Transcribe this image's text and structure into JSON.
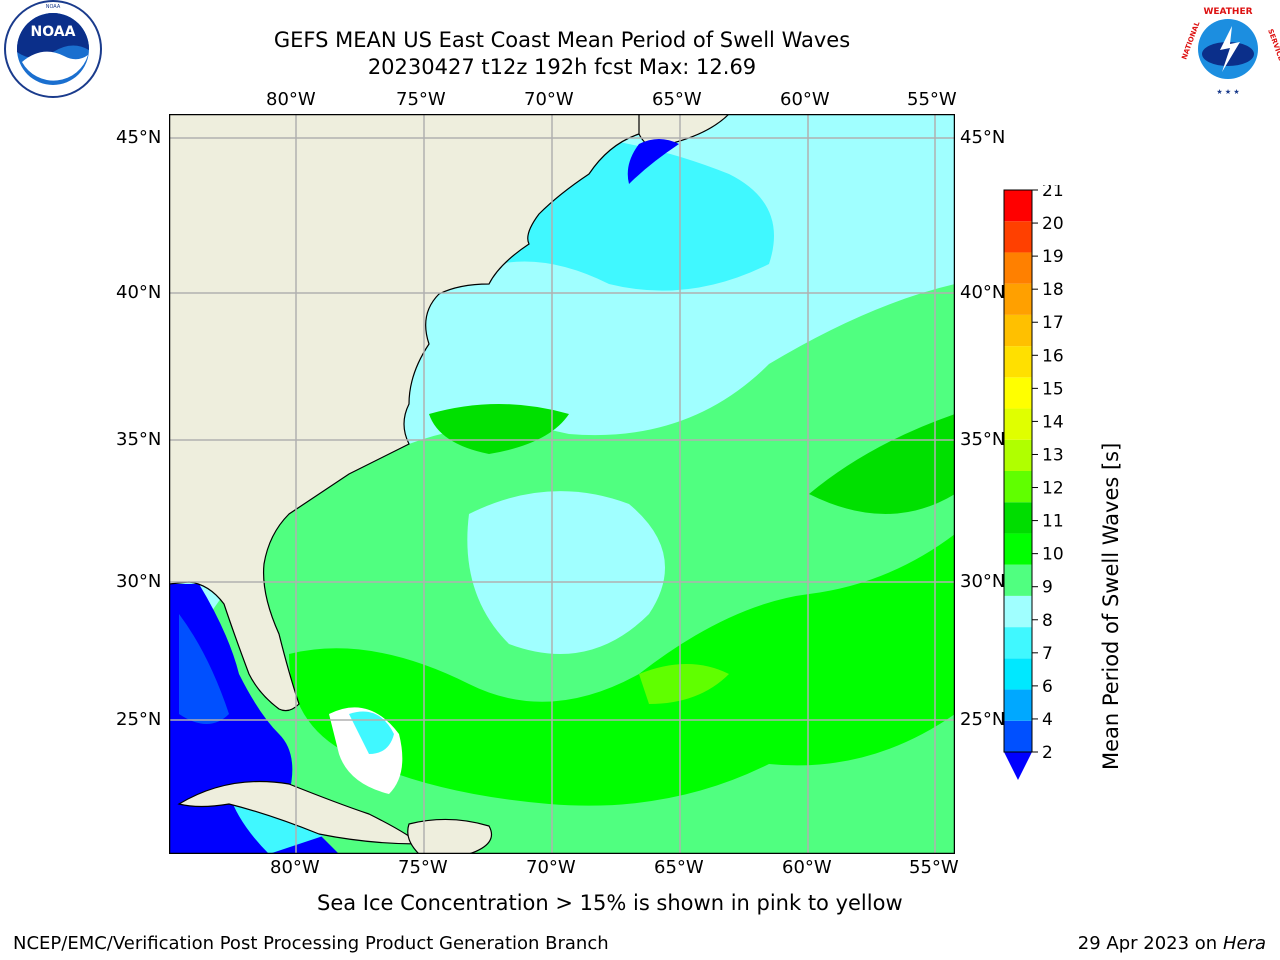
{
  "header": {
    "title_line1": "GEFS MEAN US East Coast Mean Period of Swell Waves",
    "title_line2": "20230427 t12z 192h fcst   Max: 12.69"
  },
  "logos": {
    "left": {
      "text": "NOAA",
      "ring_text": "NATIONAL OCEANIC AND ATMOSPHERIC ADMINISTRATION · U.S. DEPARTMENT OF COMMERCE"
    },
    "right": {
      "ring_text": "NATIONAL WEATHER SERVICE"
    }
  },
  "map": {
    "lon_labels": [
      "80°W",
      "75°W",
      "70°W",
      "65°W",
      "60°W",
      "55°W"
    ],
    "lat_labels": [
      "45°N",
      "40°N",
      "35°N",
      "30°N",
      "25°N"
    ],
    "colors": {
      "land": "#eeeedd",
      "grid": "#b0b0b0",
      "coast": "#000000"
    }
  },
  "colorbar": {
    "label": "Mean Period of Swell Waves [s]",
    "ticks": [
      "2",
      "4",
      "6",
      "7",
      "8",
      "9",
      "10",
      "11",
      "12",
      "13",
      "14",
      "15",
      "16",
      "17",
      "18",
      "19",
      "20",
      "21"
    ],
    "colors": [
      "#0050ff",
      "#00a8ff",
      "#00e8ff",
      "#40f8ff",
      "#a0ffff",
      "#50ff80",
      "#00ff00",
      "#00dd00",
      "#60ff00",
      "#b0ff00",
      "#e0ff00",
      "#ffff00",
      "#ffe000",
      "#ffc000",
      "#ffa000",
      "#ff8000",
      "#ff4000",
      "#ff0000"
    ],
    "extend_color": "#0000ff"
  },
  "notes": {
    "sea_ice": "Sea Ice Concentration > 15% is shown in pink to yellow"
  },
  "footer": {
    "left": "NCEP/EMC/Verification Post Processing Product Generation Branch",
    "right_date": "29 Apr 2023 on ",
    "right_host": "Hera"
  }
}
